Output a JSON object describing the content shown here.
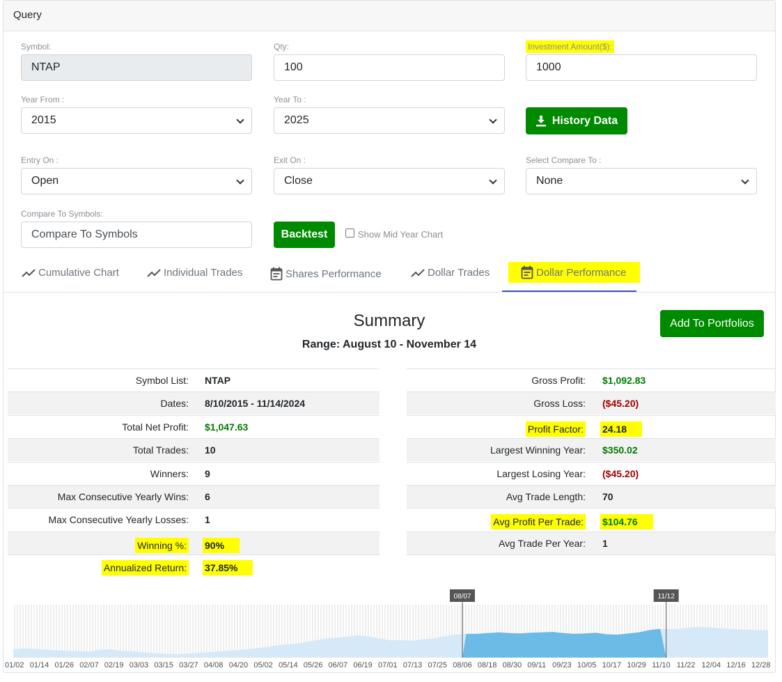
{
  "card": {
    "title": "Query"
  },
  "form": {
    "symbol": {
      "label": "Symbol:",
      "value": "NTAP"
    },
    "qty": {
      "label": "Qty:",
      "value": "100"
    },
    "investment": {
      "label": "Investment Amount($):",
      "value": "1000"
    },
    "year_from": {
      "label": "Year From :",
      "value": "2015"
    },
    "year_to": {
      "label": "Year To :",
      "value": "2025"
    },
    "history_button": "History Data",
    "entry_on": {
      "label": "Entry On :",
      "value": "Open"
    },
    "exit_on": {
      "label": "Exit On :",
      "value": "Close"
    },
    "compare_to": {
      "label": "Select Compare To :",
      "value": "None"
    },
    "compare_symbols": {
      "label": "Compare To Symbols:",
      "placeholder": "Compare To Symbols"
    },
    "backtest_button": "Backtest",
    "mid_year_label": "Show Mid Year Chart"
  },
  "tabs": [
    {
      "label": "Cumulative Chart",
      "icon": "trend-icon"
    },
    {
      "label": "Individual Trades",
      "icon": "trend-icon"
    },
    {
      "label": "Shares Performance",
      "icon": "calendar-icon"
    },
    {
      "label": "Dollar Trades",
      "icon": "trend-icon"
    },
    {
      "label": "Dollar Performance",
      "icon": "calendar-icon",
      "active": true
    }
  ],
  "summary": {
    "title": "Summary",
    "range": "Range: August 10 - November 14",
    "add_button": "Add To Portfolios",
    "left": [
      {
        "label": "Symbol List:",
        "value": "NTAP",
        "tone": "plain"
      },
      {
        "label": "Dates:",
        "value": "8/10/2015 - 11/14/2024",
        "tone": "plain"
      },
      {
        "label": "Total Net Profit:",
        "value": "$1,047.63",
        "tone": "pos"
      },
      {
        "label": "Total Trades:",
        "value": "10",
        "tone": "plain"
      },
      {
        "label": "Winners:",
        "value": "9",
        "tone": "plain"
      },
      {
        "label": "Max Consecutive Yearly Wins:",
        "value": "6",
        "tone": "plain"
      },
      {
        "label": "Max Consecutive Yearly Losses:",
        "value": "1",
        "tone": "plain"
      },
      {
        "label": "Winning %:",
        "value": "90%",
        "tone": "plain"
      },
      {
        "label": "Annualized Return:",
        "value": "37.85%",
        "tone": "plain"
      }
    ],
    "right": [
      {
        "label": "Gross Profit:",
        "value": "$1,092.83",
        "tone": "pos"
      },
      {
        "label": "Gross Loss:",
        "value": "($45.20)",
        "tone": "neg"
      },
      {
        "label": "Profit Factor:",
        "value": "24.18",
        "tone": "plain"
      },
      {
        "label": "Largest Winning Year:",
        "value": "$350.02",
        "tone": "pos"
      },
      {
        "label": "Largest Losing Year:",
        "value": "($45.20)",
        "tone": "neg"
      },
      {
        "label": "Avg Trade Length:",
        "value": "70",
        "tone": "plain"
      },
      {
        "label": "Avg Profit Per Trade:",
        "value": "$104.76",
        "tone": "pos"
      },
      {
        "label": "Avg Trade Per Year:",
        "value": "1",
        "tone": "plain"
      }
    ]
  },
  "chart_data": {
    "type": "area",
    "title": "",
    "range_markers": [
      "08/07",
      "11/12"
    ],
    "x_tick_labels": [
      "01/02",
      "01/14",
      "01/26",
      "02/07",
      "02/19",
      "03/03",
      "03/15",
      "03/27",
      "04/08",
      "04/20",
      "05/02",
      "05/14",
      "05/26",
      "06/07",
      "06/19",
      "07/01",
      "07/13",
      "07/25",
      "08/06",
      "08/18",
      "08/30",
      "09/11",
      "09/23",
      "10/05",
      "10/17",
      "10/29",
      "11/10",
      "11/22",
      "12/04",
      "12/16",
      "12/28"
    ],
    "series_profile": [
      0.22,
      0.24,
      0.23,
      0.21,
      0.19,
      0.18,
      0.17,
      0.16,
      0.2,
      0.22,
      0.18,
      0.17,
      0.14,
      0.12,
      0.1,
      0.09,
      0.1,
      0.12,
      0.14,
      0.16,
      0.18,
      0.2,
      0.23,
      0.26,
      0.3,
      0.34,
      0.36,
      0.4,
      0.45,
      0.5,
      0.52,
      0.55,
      0.58,
      0.55,
      0.5,
      0.45,
      0.46,
      0.44,
      0.48,
      0.5,
      0.56,
      0.6,
      0.62,
      0.62,
      0.64,
      0.66,
      0.64,
      0.63,
      0.65,
      0.66,
      0.67,
      0.64,
      0.62,
      0.63,
      0.65,
      0.61,
      0.6,
      0.63,
      0.66,
      0.72,
      0.75,
      0.74,
      0.76,
      0.79,
      0.8,
      0.78,
      0.76,
      0.74,
      0.73,
      0.72,
      0.72
    ],
    "highlight_range": [
      0.595,
      0.865
    ],
    "colors": {
      "light": "#d6e9f8",
      "dark": "#6bbbe6",
      "bars": "#cfcfcf",
      "marker": "#555555"
    }
  },
  "colors": {
    "green": "#008a00",
    "highlight": "#ffff00",
    "tab_active": "#3f51b5"
  }
}
